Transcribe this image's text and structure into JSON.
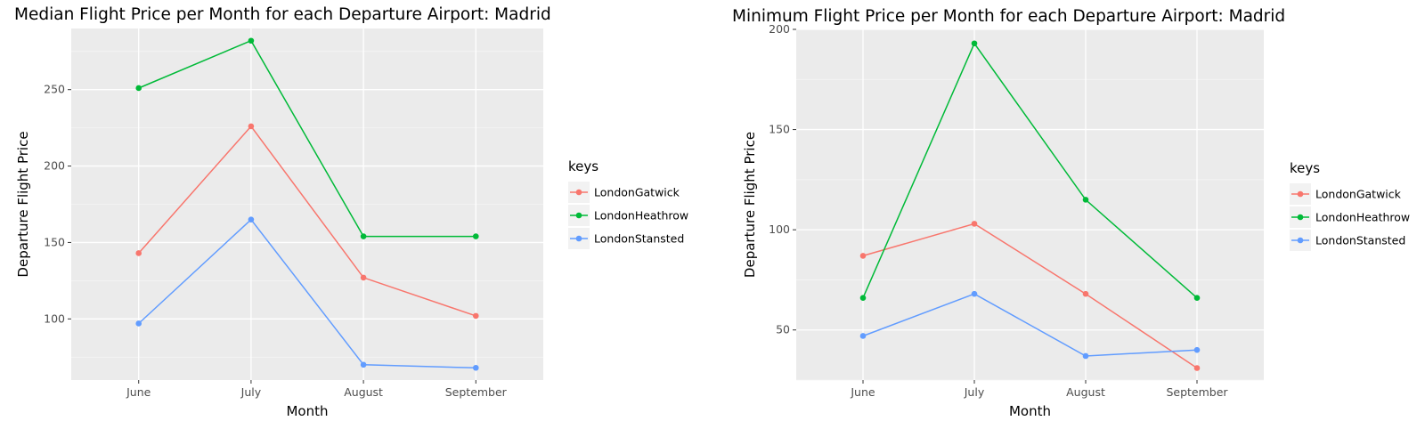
{
  "colors": {
    "panel": "#ebebeb",
    "grid_major": "#ffffff",
    "grid_minor": "#f5f5f5",
    "legend_key_bg": "#f2f2f2"
  },
  "chart_data": [
    {
      "type": "line",
      "title": "Median Flight Price per Month for each Departure Airport: Madrid",
      "xlabel": "Month",
      "ylabel": "Departure Flight Price",
      "categories": [
        "June",
        "July",
        "August",
        "September"
      ],
      "ylim": [
        60,
        290
      ],
      "yticks": [
        100,
        150,
        200,
        250
      ],
      "grid": true,
      "legend_position": "right",
      "legend_title": "keys",
      "series": [
        {
          "name": "LondonGatwick",
          "color": "#f8766d",
          "values": [
            143,
            226,
            127,
            102
          ]
        },
        {
          "name": "LondonHeathrow",
          "color": "#00ba38",
          "values": [
            251,
            282,
            154,
            154
          ]
        },
        {
          "name": "LondonStansted",
          "color": "#619cff",
          "values": [
            97,
            165,
            70,
            68
          ]
        }
      ]
    },
    {
      "type": "line",
      "title": "Minimum Flight Price per Month for each Departure Airport: Madrid",
      "xlabel": "Month",
      "ylabel": "Departure Flight Price",
      "categories": [
        "June",
        "July",
        "August",
        "September"
      ],
      "ylim": [
        25,
        200
      ],
      "yticks": [
        50,
        100,
        150,
        200
      ],
      "grid": true,
      "legend_position": "right",
      "legend_title": "keys",
      "series": [
        {
          "name": "LondonGatwick",
          "color": "#f8766d",
          "values": [
            87,
            103,
            68,
            31
          ]
        },
        {
          "name": "LondonHeathrow",
          "color": "#00ba38",
          "values": [
            66,
            193,
            115,
            66
          ]
        },
        {
          "name": "LondonStansted",
          "color": "#619cff",
          "values": [
            47,
            68,
            37,
            40
          ]
        }
      ]
    }
  ]
}
